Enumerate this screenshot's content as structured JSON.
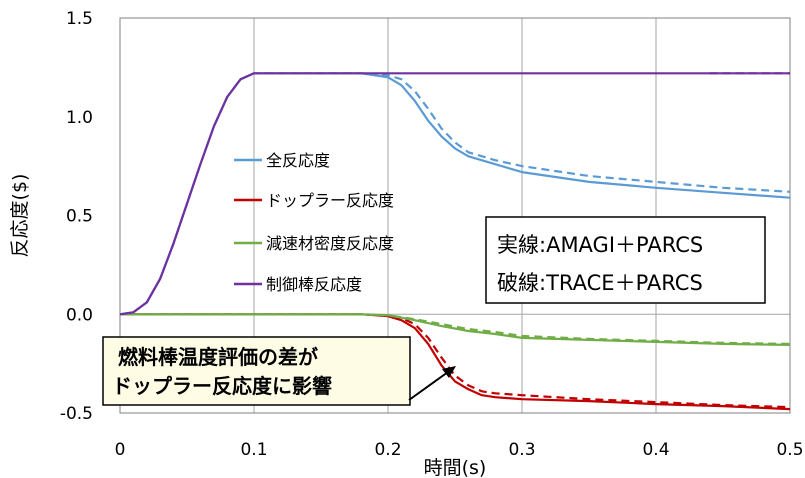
{
  "chart_data": {
    "type": "line",
    "title": "",
    "xlabel": "時間(s)",
    "ylabel": "反応度($)",
    "xlim": [
      0,
      0.5
    ],
    "ylim": [
      -0.5,
      1.5
    ],
    "x_ticks": [
      "0",
      "0.1",
      "0.2",
      "0.3",
      "0.4",
      "0.5"
    ],
    "y_ticks": [
      "1.5",
      "1.0",
      "0.5",
      "0.0",
      "-0.5"
    ],
    "x_tick_values": [
      0,
      0.1,
      0.2,
      0.3,
      0.4,
      0.5
    ],
    "y_tick_values": [
      1.5,
      1.0,
      0.5,
      0.0,
      -0.5
    ],
    "grid": "vertical lines",
    "legend": "upper-left inside plot",
    "series": [
      {
        "name": "全反応度",
        "color": "#5B9BD5",
        "style": "solid",
        "points": [
          [
            0,
            0
          ],
          [
            0.01,
            0.01
          ],
          [
            0.02,
            0.06
          ],
          [
            0.03,
            0.18
          ],
          [
            0.04,
            0.36
          ],
          [
            0.05,
            0.56
          ],
          [
            0.06,
            0.76
          ],
          [
            0.07,
            0.95
          ],
          [
            0.08,
            1.1
          ],
          [
            0.09,
            1.19
          ],
          [
            0.1,
            1.22
          ],
          [
            0.15,
            1.22
          ],
          [
            0.18,
            1.22
          ],
          [
            0.2,
            1.2
          ],
          [
            0.21,
            1.16
          ],
          [
            0.22,
            1.08
          ],
          [
            0.23,
            0.98
          ],
          [
            0.24,
            0.9
          ],
          [
            0.25,
            0.84
          ],
          [
            0.26,
            0.8
          ],
          [
            0.28,
            0.76
          ],
          [
            0.3,
            0.72
          ],
          [
            0.35,
            0.67
          ],
          [
            0.4,
            0.64
          ],
          [
            0.45,
            0.615
          ],
          [
            0.5,
            0.59
          ]
        ]
      },
      {
        "name": "全反応度",
        "color": "#5B9BD5",
        "style": "dashed",
        "points": [
          [
            0,
            0
          ],
          [
            0.01,
            0.01
          ],
          [
            0.02,
            0.06
          ],
          [
            0.03,
            0.18
          ],
          [
            0.04,
            0.36
          ],
          [
            0.05,
            0.56
          ],
          [
            0.06,
            0.76
          ],
          [
            0.07,
            0.95
          ],
          [
            0.08,
            1.1
          ],
          [
            0.09,
            1.19
          ],
          [
            0.1,
            1.22
          ],
          [
            0.15,
            1.22
          ],
          [
            0.18,
            1.22
          ],
          [
            0.2,
            1.21
          ],
          [
            0.21,
            1.19
          ],
          [
            0.22,
            1.13
          ],
          [
            0.23,
            1.04
          ],
          [
            0.24,
            0.94
          ],
          [
            0.25,
            0.87
          ],
          [
            0.26,
            0.82
          ],
          [
            0.28,
            0.78
          ],
          [
            0.3,
            0.75
          ],
          [
            0.35,
            0.7
          ],
          [
            0.4,
            0.67
          ],
          [
            0.45,
            0.64
          ],
          [
            0.5,
            0.62
          ]
        ]
      },
      {
        "name": "ドップラー反応度",
        "color": "#C00000",
        "style": "solid",
        "points": [
          [
            0,
            0
          ],
          [
            0.1,
            0
          ],
          [
            0.18,
            0
          ],
          [
            0.19,
            -0.005
          ],
          [
            0.2,
            -0.01
          ],
          [
            0.21,
            -0.03
          ],
          [
            0.22,
            -0.07
          ],
          [
            0.23,
            -0.15
          ],
          [
            0.24,
            -0.26
          ],
          [
            0.25,
            -0.34
          ],
          [
            0.26,
            -0.38
          ],
          [
            0.27,
            -0.41
          ],
          [
            0.28,
            -0.42
          ],
          [
            0.3,
            -0.43
          ],
          [
            0.35,
            -0.44
          ],
          [
            0.4,
            -0.455
          ],
          [
            0.45,
            -0.465
          ],
          [
            0.5,
            -0.48
          ]
        ]
      },
      {
        "name": "ドップラー反応度",
        "color": "#C00000",
        "style": "dashed",
        "points": [
          [
            0,
            0
          ],
          [
            0.1,
            0
          ],
          [
            0.18,
            0
          ],
          [
            0.19,
            -0.003
          ],
          [
            0.2,
            -0.006
          ],
          [
            0.21,
            -0.02
          ],
          [
            0.22,
            -0.05
          ],
          [
            0.23,
            -0.12
          ],
          [
            0.24,
            -0.22
          ],
          [
            0.25,
            -0.31
          ],
          [
            0.26,
            -0.36
          ],
          [
            0.27,
            -0.39
          ],
          [
            0.28,
            -0.4
          ],
          [
            0.3,
            -0.41
          ],
          [
            0.35,
            -0.43
          ],
          [
            0.4,
            -0.445
          ],
          [
            0.45,
            -0.46
          ],
          [
            0.5,
            -0.47
          ]
        ]
      },
      {
        "name": "減速材密度反応度",
        "color": "#70AD47",
        "style": "solid",
        "points": [
          [
            0,
            0
          ],
          [
            0.1,
            0
          ],
          [
            0.18,
            0
          ],
          [
            0.2,
            -0.005
          ],
          [
            0.22,
            -0.03
          ],
          [
            0.24,
            -0.06
          ],
          [
            0.26,
            -0.085
          ],
          [
            0.28,
            -0.1
          ],
          [
            0.3,
            -0.12
          ],
          [
            0.35,
            -0.13
          ],
          [
            0.4,
            -0.14
          ],
          [
            0.45,
            -0.15
          ],
          [
            0.5,
            -0.155
          ]
        ]
      },
      {
        "name": "減速材密度反応度",
        "color": "#70AD47",
        "style": "dashed",
        "points": [
          [
            0,
            0
          ],
          [
            0.1,
            0
          ],
          [
            0.18,
            0
          ],
          [
            0.2,
            -0.005
          ],
          [
            0.22,
            -0.025
          ],
          [
            0.24,
            -0.05
          ],
          [
            0.26,
            -0.075
          ],
          [
            0.28,
            -0.09
          ],
          [
            0.3,
            -0.11
          ],
          [
            0.35,
            -0.125
          ],
          [
            0.4,
            -0.135
          ],
          [
            0.45,
            -0.145
          ],
          [
            0.5,
            -0.15
          ]
        ]
      },
      {
        "name": "制御棒反応度",
        "color": "#7030A0",
        "style": "solid",
        "points": [
          [
            0,
            0
          ],
          [
            0.01,
            0.01
          ],
          [
            0.02,
            0.06
          ],
          [
            0.03,
            0.18
          ],
          [
            0.04,
            0.36
          ],
          [
            0.05,
            0.56
          ],
          [
            0.06,
            0.76
          ],
          [
            0.07,
            0.95
          ],
          [
            0.08,
            1.1
          ],
          [
            0.09,
            1.19
          ],
          [
            0.1,
            1.22
          ],
          [
            0.2,
            1.22
          ],
          [
            0.3,
            1.22
          ],
          [
            0.4,
            1.22
          ],
          [
            0.5,
            1.22
          ]
        ]
      },
      {
        "name": "制御棒反応度",
        "color": "#7030A0",
        "style": "dashed",
        "points": [
          [
            0.44,
            1.22
          ],
          [
            0.5,
            1.22
          ]
        ]
      }
    ],
    "legend_entries": [
      {
        "label": "全反応度",
        "color": "#5B9BD5"
      },
      {
        "label": "ドップラー反応度",
        "color": "#C00000"
      },
      {
        "label": "減速材密度反応度",
        "color": "#70AD47"
      },
      {
        "label": "制御棒反応度",
        "color": "#7030A0"
      }
    ],
    "annotations": {
      "code_box": [
        "実線:AMAGI＋PARCS",
        "破線:TRACE＋PARCS"
      ],
      "callout": [
        "燃料棒温度評価の差が",
        "ドップラー反応度に影響"
      ]
    }
  }
}
